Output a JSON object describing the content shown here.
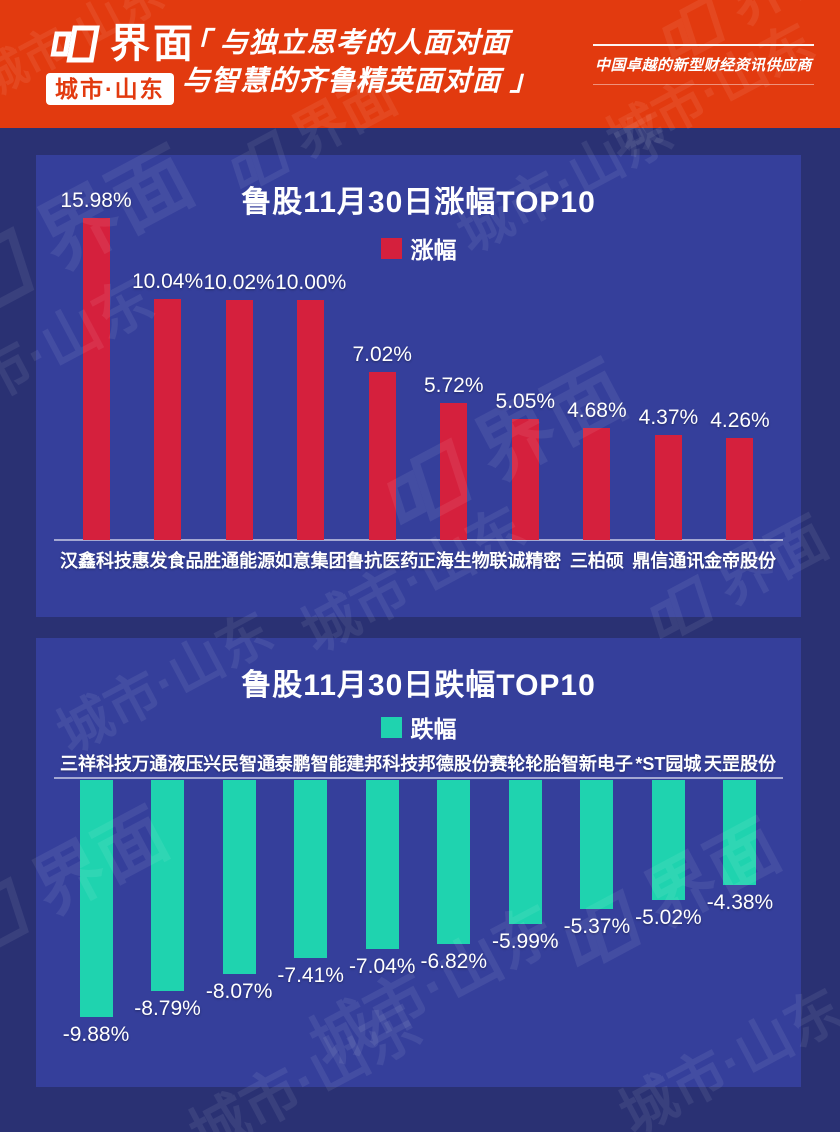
{
  "header": {
    "brand": {
      "logo_text": "界面",
      "region": "城市·山东"
    },
    "tagline_line1": "「 与独立思考的人面对面",
    "tagline_line2": "与智慧的齐鲁精英面对面 」",
    "slogan": "中国卓越的新型财经资讯供应商"
  },
  "watermark": {
    "logo_text": "界面",
    "region_text": "城市·山东"
  },
  "colors": {
    "header_red": "#E23A0F",
    "page_navy": "#2A3173",
    "panel_blue": "#353F9B",
    "gain_red": "#D5203D",
    "loss_teal": "#1FD3AF"
  },
  "chart_data": [
    {
      "type": "bar",
      "title": "鲁股11月30日涨幅TOP10",
      "legend": "涨幅",
      "bar_color": "#D5203D",
      "categories": [
        "汉鑫科技",
        "惠发食品",
        "胜通能源",
        "如意集团",
        "鲁抗医药",
        "正海生物",
        "联诚精密",
        "三柏硕",
        "鼎信通讯",
        "金帝股份"
      ],
      "values": [
        15.98,
        10.04,
        10.02,
        10.0,
        7.02,
        5.72,
        5.05,
        4.68,
        4.37,
        4.26
      ],
      "value_labels": [
        "15.98%",
        "10.04%",
        "10.02%",
        "10.00%",
        "7.02%",
        "5.72%",
        "5.05%",
        "4.68%",
        "4.37%",
        "4.26%"
      ],
      "xlabel": "",
      "ylabel": "",
      "ylim": [
        0,
        16
      ],
      "grid": false,
      "legend_position": "top-center"
    },
    {
      "type": "bar",
      "title": "鲁股11月30日跌幅TOP10",
      "legend": "跌幅",
      "bar_color": "#1FD3AF",
      "categories": [
        "三祥科技",
        "万通液压",
        "兴民智通",
        "泰鹏智能",
        "建邦科技",
        "邦德股份",
        "赛轮轮胎",
        "智新电子",
        "*ST园城",
        "天罡股份"
      ],
      "values": [
        -9.88,
        -8.79,
        -8.07,
        -7.41,
        -7.04,
        -6.82,
        -5.99,
        -5.37,
        -5.02,
        -4.38
      ],
      "value_labels": [
        "-9.88%",
        "-8.79%",
        "-8.07%",
        "-7.41%",
        "-7.04%",
        "-6.82%",
        "-5.99%",
        "-5.37%",
        "-5.02%",
        "-4.38%"
      ],
      "xlabel": "",
      "ylabel": "",
      "ylim": [
        -10,
        0
      ],
      "grid": false,
      "legend_position": "top-center"
    }
  ]
}
